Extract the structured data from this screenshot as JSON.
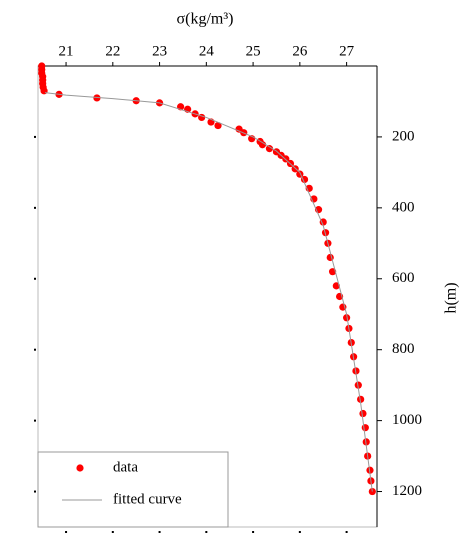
{
  "chart_data": {
    "type": "scatter",
    "title": "σ(kg/m³)",
    "y_label": "h(m)",
    "xlim": [
      20.4,
      27.65
    ],
    "xticks": [
      21,
      22,
      23,
      24,
      25,
      26,
      27
    ],
    "ylim": [
      0,
      1300
    ],
    "yticks": [
      200,
      400,
      600,
      800,
      1000,
      1200
    ],
    "y_inverted": true,
    "legend": "lower left",
    "grid": false,
    "series": [
      {
        "name": "data",
        "color": "#ff0000",
        "mark": "scatter",
        "x": [
          20.48,
          20.48,
          20.48,
          20.5,
          20.5,
          20.5,
          20.51,
          20.53,
          20.85,
          21.66,
          22.5,
          23.0,
          23.45,
          23.6,
          23.76,
          23.9,
          24.1,
          24.25,
          24.7,
          24.8,
          24.97,
          25.15,
          25.2,
          25.35,
          25.5,
          25.6,
          25.7,
          25.8,
          25.9,
          26.0,
          26.1,
          26.2,
          26.3,
          26.4,
          26.5,
          26.55,
          26.6,
          26.65,
          26.7,
          26.78,
          26.85,
          26.92,
          27.0,
          27.05,
          27.1,
          27.15,
          27.2,
          27.25,
          27.3,
          27.35,
          27.4,
          27.42,
          27.45,
          27.5,
          27.52,
          27.55
        ],
        "values": [
          0,
          10,
          20,
          30,
          40,
          50,
          60,
          70,
          80,
          90,
          98,
          104,
          115,
          122,
          135,
          145,
          158,
          168,
          178,
          188,
          205,
          213,
          222,
          233,
          242,
          252,
          262,
          275,
          290,
          305,
          320,
          345,
          375,
          405,
          440,
          470,
          500,
          540,
          580,
          620,
          650,
          680,
          710,
          740,
          780,
          820,
          860,
          900,
          940,
          980,
          1020,
          1060,
          1100,
          1140,
          1170,
          1200
        ]
      },
      {
        "name": "fitted curve",
        "color": "#999999",
        "mark": "line",
        "x": [
          20.55,
          21.0,
          22.0,
          23.0,
          24.0,
          25.0,
          25.5,
          26.0,
          26.5,
          27.0,
          27.3,
          27.55
        ],
        "values": [
          75,
          82,
          92,
          104,
          145,
          200,
          240,
          300,
          450,
          700,
          950,
          1200
        ]
      }
    ]
  }
}
